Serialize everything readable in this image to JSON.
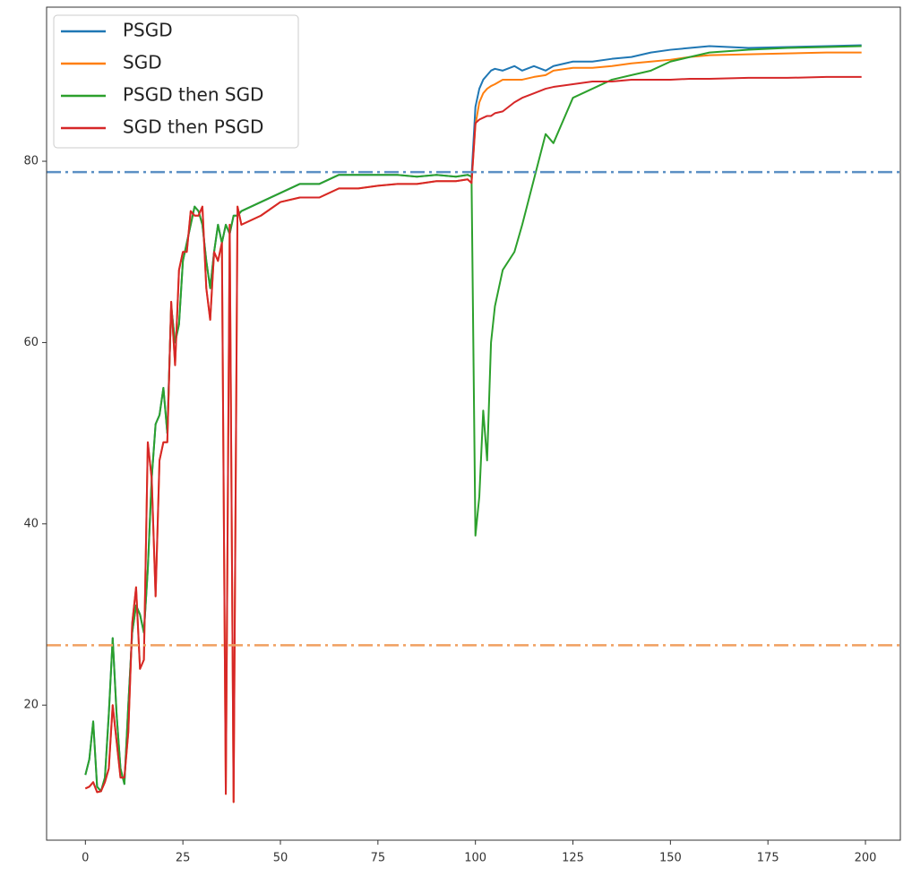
{
  "chart_data": {
    "type": "line",
    "x": [
      0,
      1,
      2,
      3,
      4,
      5,
      6,
      7,
      8,
      9,
      10,
      11,
      12,
      13,
      14,
      15,
      16,
      17,
      18,
      19,
      20,
      21,
      22,
      23,
      24,
      25,
      26,
      27,
      28,
      29,
      30,
      31,
      32,
      33,
      34,
      35,
      36,
      37,
      38,
      39,
      40,
      45,
      50,
      55,
      60,
      65,
      70,
      75,
      80,
      85,
      90,
      95,
      98,
      99,
      100,
      101,
      102,
      103,
      104,
      105,
      107,
      110,
      112,
      115,
      118,
      120,
      125,
      130,
      135,
      140,
      145,
      150,
      155,
      160,
      170,
      180,
      190,
      199
    ],
    "series": [
      {
        "name": "PSGD",
        "color": "#1f77b4",
        "values": [
          12.3,
          14,
          18.2,
          11,
          10.5,
          12,
          19,
          27.4,
          19,
          13,
          11.3,
          20,
          28,
          31,
          30,
          28,
          35,
          45,
          51,
          52,
          55,
          50,
          64,
          60,
          62,
          69,
          71,
          73,
          75,
          74.5,
          73,
          69,
          66,
          70,
          73,
          71,
          73,
          72,
          74,
          74,
          74.5,
          75.5,
          76.5,
          77.5,
          77.5,
          78.5,
          78.5,
          78.5,
          78.5,
          78.3,
          78.5,
          78.3,
          78.5,
          78.3,
          86,
          88,
          89,
          89.5,
          90,
          90.2,
          90,
          90.5,
          90,
          90.5,
          90,
          90.5,
          91,
          91,
          91.3,
          91.5,
          92,
          92.3,
          92.5,
          92.7,
          92.5,
          92.6,
          92.7,
          92.8
        ]
      },
      {
        "name": "SGD",
        "color": "#ff7f0e",
        "values": [
          10.8,
          11,
          11.5,
          10.4,
          10.5,
          11.5,
          13,
          20,
          16,
          12,
          12,
          17,
          29,
          33,
          24,
          25,
          49,
          45,
          32,
          47,
          49,
          49,
          64.5,
          57.5,
          68,
          70,
          70,
          74.5,
          74,
          74,
          75,
          66,
          62.5,
          70,
          69,
          71,
          10.2,
          73,
          9.3,
          75,
          73,
          74,
          75.5,
          76,
          76,
          77,
          77,
          77.3,
          77.5,
          77.5,
          77.8,
          77.8,
          78,
          77.6,
          84,
          86.5,
          87.5,
          88,
          88.3,
          88.5,
          89,
          89,
          89,
          89.3,
          89.5,
          90,
          90.3,
          90.3,
          90.5,
          90.8,
          91,
          91.2,
          91.5,
          91.7,
          91.8,
          91.9,
          92,
          92
        ]
      },
      {
        "name": "PSGD then SGD",
        "color": "#2ca02c",
        "values": [
          12.3,
          14,
          18.2,
          11,
          10.5,
          12,
          19,
          27.4,
          19,
          13,
          11.3,
          20,
          28,
          31,
          30,
          28,
          35,
          45,
          51,
          52,
          55,
          50,
          64,
          60,
          62,
          69,
          71,
          73,
          75,
          74.5,
          73,
          69,
          66,
          70,
          73,
          71,
          73,
          72,
          74,
          74,
          74.5,
          75.5,
          76.5,
          77.5,
          77.5,
          78.5,
          78.5,
          78.5,
          78.5,
          78.3,
          78.5,
          78.3,
          78.5,
          78.3,
          38.7,
          43,
          52.5,
          47,
          60,
          64,
          68,
          70,
          73,
          78,
          83,
          82,
          87,
          88,
          89,
          89.5,
          90,
          91,
          91.5,
          92,
          92.3,
          92.5,
          92.6,
          92.7
        ]
      },
      {
        "name": "SGD then PSGD",
        "color": "#d62728",
        "values": [
          10.8,
          11,
          11.5,
          10.4,
          10.5,
          11.5,
          13,
          20,
          16,
          12,
          12,
          17,
          29,
          33,
          24,
          25,
          49,
          45,
          32,
          47,
          49,
          49,
          64.5,
          57.5,
          68,
          70,
          70,
          74.5,
          74,
          74,
          75,
          66,
          62.5,
          70,
          69,
          71,
          10.2,
          73,
          9.3,
          75,
          73,
          74,
          75.5,
          76,
          76,
          77,
          77,
          77.3,
          77.5,
          77.5,
          77.8,
          77.8,
          78,
          77.6,
          84.2,
          84.6,
          84.8,
          85,
          85,
          85.3,
          85.5,
          86.5,
          87,
          87.5,
          88,
          88.2,
          88.5,
          88.8,
          88.8,
          89,
          89,
          89,
          89.1,
          89.1,
          89.2,
          89.2,
          89.3,
          89.3
        ]
      }
    ],
    "hlines": [
      {
        "value": 78.8,
        "color": "#5b8fc4",
        "linestyle": "dashdot"
      },
      {
        "value": 26.6,
        "color": "#f0a060",
        "linestyle": "dashdot"
      }
    ],
    "xlim": [
      -9.95,
      208.95
    ],
    "ylim": [
      5.1,
      97.0
    ],
    "xticks": [
      0,
      25,
      50,
      75,
      100,
      125,
      150,
      175,
      200
    ],
    "yticks": [
      20,
      40,
      60,
      80
    ],
    "legend": "upper left"
  }
}
